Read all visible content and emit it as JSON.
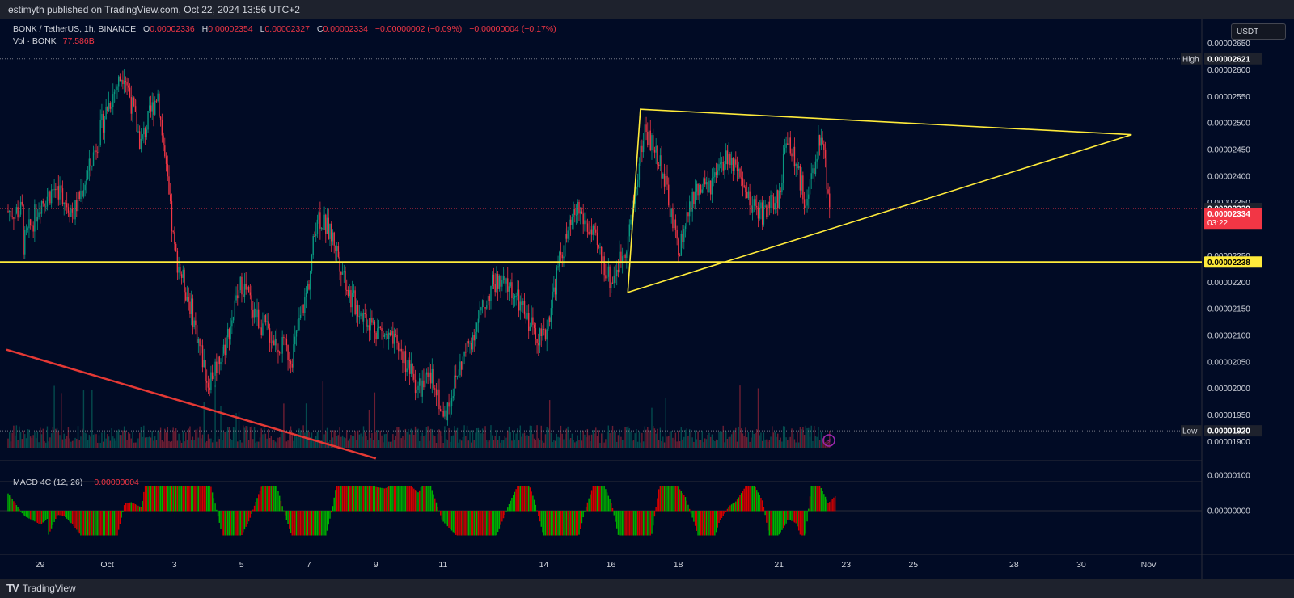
{
  "header": {
    "published": "estimyth published on TradingView.com, Oct 22, 2024 13:56 UTC+2"
  },
  "legend": {
    "symbol": "BONK / TetherUS, 1h, BINANCE",
    "o_label": "O",
    "o": "0.00002336",
    "h_label": "H",
    "h": "0.00002354",
    "l_label": "L",
    "l": "0.00002327",
    "c_label": "C",
    "c": "0.00002334",
    "change": "−0.00000002 (−0.09%)",
    "change2": "−0.00000004 (−0.17%)",
    "vol_label": "Vol · BONK",
    "vol": "77.586B",
    "macd_label": "MACD 4C (12, 26)",
    "macd_value": "−0.00000004"
  },
  "currency_button": "USDT",
  "footer": {
    "brand": "TradingView"
  },
  "colors": {
    "bg": "#131722",
    "up": "#26a69a",
    "candle_up": "#089981",
    "down": "#f23645",
    "yellow": "#ffeb3b",
    "red_trend": "#e53935",
    "macd_green": "#00b200",
    "macd_red": "#d50000"
  },
  "chart_data": {
    "type": "candlestick",
    "symbol": "BONK / TetherUS",
    "interval": "1h",
    "exchange": "BINANCE",
    "y_unit": "USDT",
    "ylim": [
      1.87e-05,
      2.68e-05
    ],
    "price_ticks": [
      "0.00002650",
      "0.00002600",
      "0.00002550",
      "0.00002500",
      "0.00002450",
      "0.00002400",
      "0.00002350",
      "0.00002250",
      "0.00002200",
      "0.00002150",
      "0.00002100",
      "0.00002050",
      "0.00002000",
      "0.00001950",
      "0.00001900"
    ],
    "x_range_days": [
      "2024-09-28",
      "2024-11-01"
    ],
    "x_ticks": [
      {
        "label": "29",
        "date": "2024-09-29"
      },
      {
        "label": "Oct",
        "date": "2024-10-01"
      },
      {
        "label": "3",
        "date": "2024-10-03"
      },
      {
        "label": "5",
        "date": "2024-10-05"
      },
      {
        "label": "7",
        "date": "2024-10-07"
      },
      {
        "label": "9",
        "date": "2024-10-09"
      },
      {
        "label": "11",
        "date": "2024-10-11"
      },
      {
        "label": "14",
        "date": "2024-10-14"
      },
      {
        "label": "16",
        "date": "2024-10-16"
      },
      {
        "label": "18",
        "date": "2024-10-18"
      },
      {
        "label": "21",
        "date": "2024-10-21"
      },
      {
        "label": "23",
        "date": "2024-10-23"
      },
      {
        "label": "25",
        "date": "2024-10-25"
      },
      {
        "label": "28",
        "date": "2024-10-28"
      },
      {
        "label": "30",
        "date": "2024-10-30"
      },
      {
        "label": "Nov",
        "date": "2024-11-01"
      }
    ],
    "price_path": [
      [
        "2024-09-28T12:00",
        2.27e-05
      ],
      [
        "2024-09-29T00:00",
        2.35e-05
      ],
      [
        "2024-09-29T12:00",
        2.38e-05
      ],
      [
        "2024-09-30T00:00",
        2.33e-05
      ],
      [
        "2024-09-30T12:00",
        2.42e-05
      ],
      [
        "2024-10-01T00:00",
        2.53e-05
      ],
      [
        "2024-10-01T12:00",
        2.6e-05
      ],
      [
        "2024-10-02T00:00",
        2.46e-05
      ],
      [
        "2024-10-02T12:00",
        2.56e-05
      ],
      [
        "2024-10-03T00:00",
        2.26e-05
      ],
      [
        "2024-10-03T12:00",
        2.15e-05
      ],
      [
        "2024-10-04T00:00",
        2.01e-05
      ],
      [
        "2024-10-04T12:00",
        2.08e-05
      ],
      [
        "2024-10-05T00:00",
        2.2e-05
      ],
      [
        "2024-10-05T12:00",
        2.13e-05
      ],
      [
        "2024-10-06T00:00",
        2.09e-05
      ],
      [
        "2024-10-06T12:00",
        2.06e-05
      ],
      [
        "2024-10-07T00:00",
        2.2e-05
      ],
      [
        "2024-10-07T06:00",
        2.33e-05
      ],
      [
        "2024-10-07T18:00",
        2.28e-05
      ],
      [
        "2024-10-08T06:00",
        2.17e-05
      ],
      [
        "2024-10-08T18:00",
        2.13e-05
      ],
      [
        "2024-10-09T06:00",
        2.1e-05
      ],
      [
        "2024-10-09T18:00",
        2.07e-05
      ],
      [
        "2024-10-10T06:00",
        2e-05
      ],
      [
        "2024-10-10T18:00",
        2.02e-05
      ],
      [
        "2024-10-11T00:00",
        1.94e-05
      ],
      [
        "2024-10-11T12:00",
        2.04e-05
      ],
      [
        "2024-10-12T00:00",
        2.12e-05
      ],
      [
        "2024-10-12T12:00",
        2.2e-05
      ],
      [
        "2024-10-13T00:00",
        2.19e-05
      ],
      [
        "2024-10-13T12:00",
        2.13e-05
      ],
      [
        "2024-10-14T00:00",
        2.09e-05
      ],
      [
        "2024-10-14T12:00",
        2.25e-05
      ],
      [
        "2024-10-15T00:00",
        2.34e-05
      ],
      [
        "2024-10-15T12:00",
        2.28e-05
      ],
      [
        "2024-10-16T00:00",
        2.2e-05
      ],
      [
        "2024-10-16T12:00",
        2.28e-05
      ],
      [
        "2024-10-17T00:00",
        2.49e-05
      ],
      [
        "2024-10-17T12:00",
        2.42e-05
      ],
      [
        "2024-10-18T00:00",
        2.26e-05
      ],
      [
        "2024-10-18T12:00",
        2.37e-05
      ],
      [
        "2024-10-19T00:00",
        2.38e-05
      ],
      [
        "2024-10-19T12:00",
        2.44e-05
      ],
      [
        "2024-10-20T00:00",
        2.36e-05
      ],
      [
        "2024-10-20T12:00",
        2.33e-05
      ],
      [
        "2024-10-21T00:00",
        2.36e-05
      ],
      [
        "2024-10-21T06:00",
        2.48e-05
      ],
      [
        "2024-10-21T18:00",
        2.36e-05
      ],
      [
        "2024-10-22T00:00",
        2.39e-05
      ],
      [
        "2024-10-22T06:00",
        2.49e-05
      ],
      [
        "2024-10-22T13:00",
        2.334e-05
      ]
    ],
    "current_price": "0.00002334",
    "prev_close_marker": "0.00002339",
    "countdown": "03:22",
    "high_label": "High",
    "high_price": "0.00002621",
    "low_label": "Low",
    "low_price": "0.00001920",
    "horizontal_line_price": "0.00002238",
    "drawings": {
      "triangle": {
        "apex_top": [
          "2024-10-16T21:00",
          2.526e-05
        ],
        "bottom": [
          "2024-10-16T12:00",
          2.181e-05
        ],
        "tip": [
          "2024-10-31T12:00",
          2.478e-05
        ]
      },
      "red_trendline": [
        [
          "2024-09-28T00:00",
          2.073e-05
        ],
        [
          "2024-10-09T00:00",
          1.868e-05
        ]
      ]
    },
    "volume": {
      "label": "Vol · BONK",
      "last": "77.586B"
    },
    "macd": {
      "label": "MACD 4C (12, 26)",
      "last": "−0.00000004",
      "ticks": [
        "0.00000100",
        "0.00000000"
      ]
    }
  }
}
